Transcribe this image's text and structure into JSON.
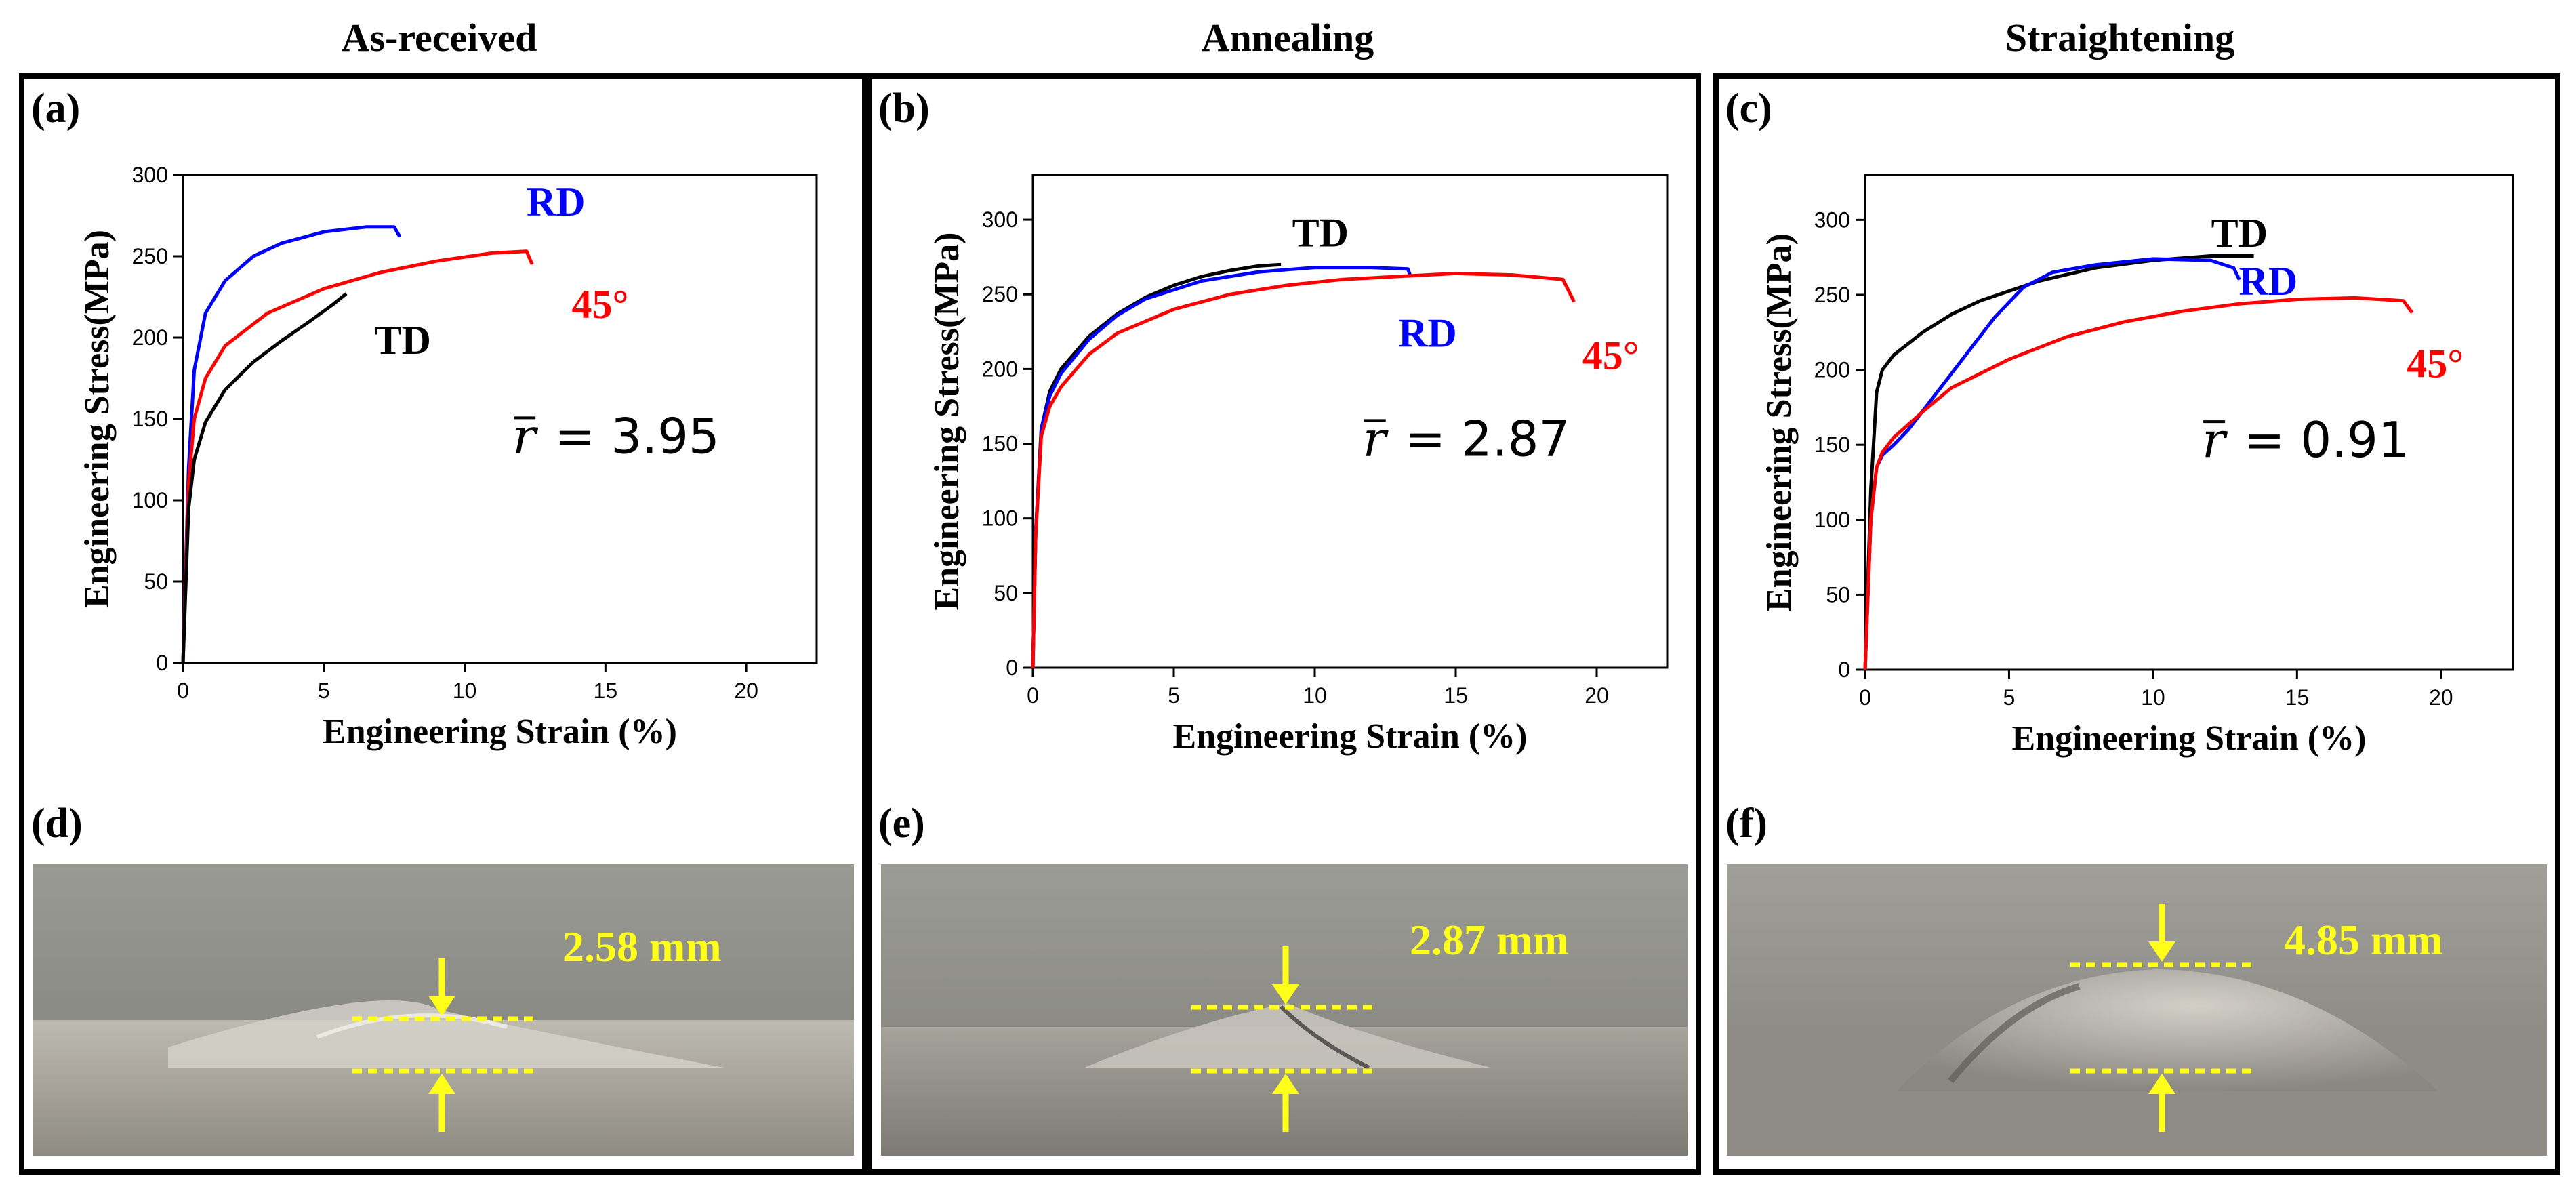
{
  "columns": [
    "As-received",
    "Annealing",
    "Straightening"
  ],
  "panel_labels": [
    "(a)",
    "(b)",
    "(c)",
    "(d)",
    "(e)",
    "(f)"
  ],
  "r_bar_values": [
    "3.95",
    "2.87",
    "0.91"
  ],
  "r_bar_prefix": "= ",
  "dome_heights": [
    "2.58 mm",
    "2.87 mm",
    "4.85 mm"
  ],
  "colors": {
    "RD": "#0000ff",
    "TD": "#000000",
    "45°": "#ff0000",
    "annotation": "#ffff1a"
  },
  "chart_data": [
    {
      "type": "line",
      "xlabel": "Engineering Strain (%)",
      "ylabel": "Engineering Stress(MPa)",
      "xlim": [
        0,
        22.5
      ],
      "ylim": [
        0,
        300
      ],
      "xticks": [
        0,
        5,
        10,
        15,
        20
      ],
      "yticks": [
        0,
        50,
        100,
        150,
        200,
        250,
        300
      ],
      "r_bar": "3.95",
      "series": [
        {
          "name": "RD",
          "x": [
            0,
            0.2,
            0.4,
            0.8,
            1.5,
            2.5,
            3.5,
            5,
            6.5,
            7.5,
            7.7
          ],
          "y": [
            0,
            120,
            180,
            215,
            235,
            250,
            258,
            265,
            268,
            268,
            262
          ]
        },
        {
          "name": "45°",
          "x": [
            0,
            0.2,
            0.4,
            0.8,
            1.5,
            3,
            5,
            7,
            9,
            11,
            12.2,
            12.4
          ],
          "y": [
            0,
            110,
            150,
            175,
            195,
            215,
            230,
            240,
            247,
            252,
            253,
            245
          ]
        },
        {
          "name": "TD",
          "x": [
            0,
            0.2,
            0.4,
            0.8,
            1.5,
            2.5,
            3.5,
            4.5,
            5.3,
            5.8
          ],
          "y": [
            0,
            95,
            125,
            148,
            168,
            185,
            198,
            210,
            220,
            227
          ]
        }
      ],
      "labels": [
        "RD",
        "45°",
        "TD"
      ]
    },
    {
      "type": "line",
      "xlabel": "Engineering Strain (%)",
      "ylabel": "Engineering Stress(MPa)",
      "xlim": [
        0,
        22.5
      ],
      "ylim": [
        0,
        330
      ],
      "xticks": [
        0,
        5,
        10,
        15,
        20
      ],
      "yticks": [
        0,
        50,
        100,
        150,
        200,
        250,
        300
      ],
      "r_bar": "2.87",
      "series": [
        {
          "name": "TD",
          "x": [
            0,
            0.1,
            0.3,
            0.6,
            1,
            2,
            3,
            4,
            5,
            6,
            7,
            8,
            8.8
          ],
          "y": [
            0,
            90,
            160,
            185,
            200,
            222,
            237,
            248,
            256,
            262,
            266,
            269,
            270
          ]
        },
        {
          "name": "RD",
          "x": [
            0,
            0.1,
            0.3,
            0.6,
            1,
            2,
            3,
            4,
            6,
            8,
            10,
            12,
            13.3,
            13.4
          ],
          "y": [
            0,
            90,
            160,
            182,
            197,
            220,
            236,
            247,
            259,
            265,
            268,
            268,
            267,
            262
          ]
        },
        {
          "name": "45°",
          "x": [
            0,
            0.1,
            0.3,
            0.6,
            1,
            2,
            3,
            5,
            7,
            9,
            11,
            13,
            15,
            17,
            18.8,
            19.2
          ],
          "y": [
            0,
            88,
            155,
            175,
            188,
            210,
            224,
            240,
            250,
            256,
            260,
            262,
            264,
            263,
            260,
            245
          ]
        }
      ],
      "labels": [
        "TD",
        "RD",
        "45°"
      ]
    },
    {
      "type": "line",
      "xlabel": "Engineering Strain (%)",
      "ylabel": "Engineering Stress(MPa)",
      "xlim": [
        0,
        22.5
      ],
      "ylim": [
        0,
        330
      ],
      "xticks": [
        0,
        5,
        10,
        15,
        20
      ],
      "yticks": [
        0,
        50,
        100,
        150,
        200,
        250,
        300
      ],
      "r_bar": "0.91",
      "series": [
        {
          "name": "TD",
          "x": [
            0,
            0.2,
            0.4,
            0.6,
            1,
            2,
            3,
            4,
            6,
            8,
            10,
            12,
            13.5
          ],
          "y": [
            0,
            120,
            185,
            200,
            210,
            225,
            237,
            246,
            259,
            268,
            273,
            276,
            276
          ]
        },
        {
          "name": "RD",
          "x": [
            0,
            0.2,
            0.4,
            0.6,
            1,
            1.5,
            2.5,
            3.5,
            4.5,
            5.5,
            6.5,
            8,
            10,
            12,
            12.8,
            13.0
          ],
          "y": [
            0,
            100,
            135,
            143,
            150,
            160,
            185,
            210,
            235,
            255,
            265,
            270,
            274,
            273,
            268,
            260
          ]
        },
        {
          "name": "45°",
          "x": [
            0,
            0.2,
            0.4,
            0.6,
            1,
            2,
            3,
            5,
            7,
            9,
            11,
            13,
            15,
            17,
            18.7,
            19.0
          ],
          "y": [
            0,
            100,
            135,
            145,
            155,
            172,
            188,
            207,
            222,
            232,
            239,
            244,
            247,
            248,
            246,
            238
          ]
        }
      ],
      "labels": [
        "TD",
        "RD",
        "45°"
      ]
    }
  ]
}
